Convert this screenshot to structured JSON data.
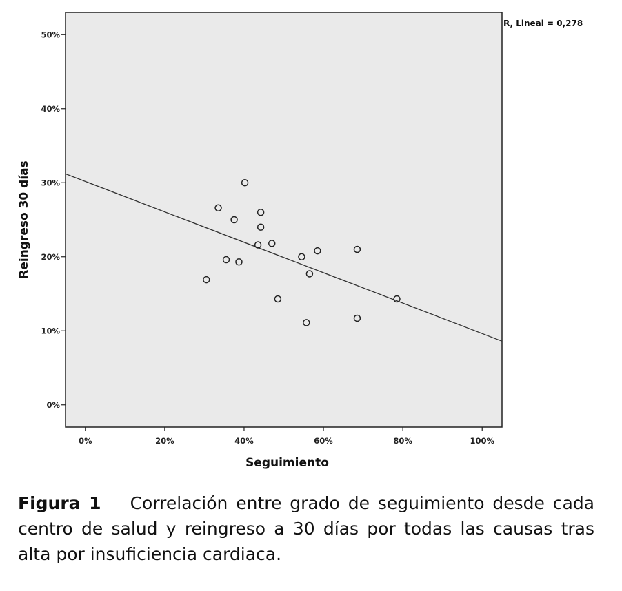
{
  "chart_data": {
    "type": "scatter",
    "xlabel": "Seguimiento",
    "ylabel": "Reingreso 30 días",
    "xlim": [
      -5,
      105
    ],
    "ylim": [
      -3,
      53
    ],
    "x_ticks": [
      0,
      20,
      40,
      60,
      80,
      100
    ],
    "x_tick_labels": [
      "0%",
      "20%",
      "40%",
      "60%",
      "80%",
      "100%"
    ],
    "y_ticks": [
      0,
      10,
      20,
      30,
      40,
      50
    ],
    "y_tick_labels": [
      "0%",
      "10%",
      "20%",
      "30%",
      "40%",
      "50%"
    ],
    "grid": false,
    "fit_label": "R, Lineal = 0,278",
    "fit_line": {
      "x": [
        -5,
        105
      ],
      "y": [
        31.2,
        8.6
      ]
    },
    "points": [
      {
        "x": 30.5,
        "y": 16.9
      },
      {
        "x": 33.5,
        "y": 26.6
      },
      {
        "x": 35.5,
        "y": 19.6
      },
      {
        "x": 37.5,
        "y": 25.0
      },
      {
        "x": 38.7,
        "y": 19.3
      },
      {
        "x": 40.2,
        "y": 30.0
      },
      {
        "x": 43.5,
        "y": 21.6
      },
      {
        "x": 44.2,
        "y": 26.0
      },
      {
        "x": 44.2,
        "y": 24.0
      },
      {
        "x": 47.0,
        "y": 21.8
      },
      {
        "x": 48.5,
        "y": 14.3
      },
      {
        "x": 54.5,
        "y": 20.0
      },
      {
        "x": 55.7,
        "y": 11.1
      },
      {
        "x": 56.5,
        "y": 17.7
      },
      {
        "x": 58.5,
        "y": 20.8
      },
      {
        "x": 68.5,
        "y": 21.0
      },
      {
        "x": 68.5,
        "y": 11.7
      },
      {
        "x": 78.5,
        "y": 14.3
      }
    ],
    "colors": {
      "plot_background": "#eaeaea",
      "frame": "#222222",
      "marker": "#222222",
      "line": "#333333"
    }
  },
  "caption": {
    "label": "Figura 1",
    "text": "Correlación entre grado de seguimiento desde cada centro de salud y reingreso a 30 días por todas las causas tras alta por insuficiencia cardiaca."
  }
}
